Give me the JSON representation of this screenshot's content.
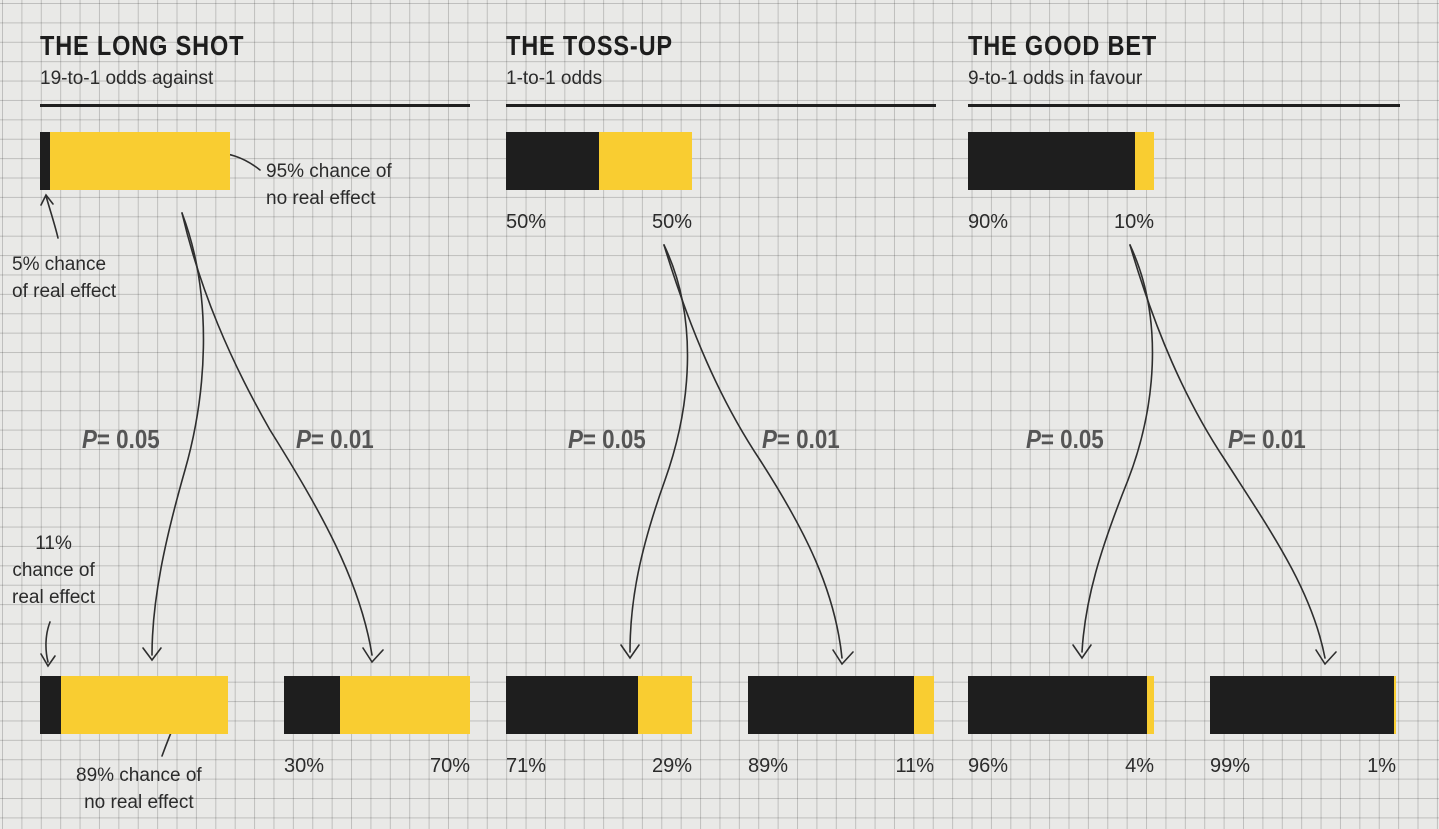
{
  "panels": [
    {
      "title": "THE LONG SHOT",
      "subtitle": "19-to-1 odds against",
      "prior": {
        "real": 5,
        "none": 95
      },
      "p05": {
        "label_p": "P",
        "label_val": "= 0.05",
        "real": 11,
        "none": 89
      },
      "p01": {
        "label_p": "P",
        "label_val": "= 0.01",
        "real": 30,
        "none": 70
      },
      "prior_labels": [
        "",
        ""
      ],
      "p05_labels": [
        "",
        ""
      ],
      "p01_labels": [
        "30%",
        "70%"
      ]
    },
    {
      "title": "THE TOSS-UP",
      "subtitle": "1-to-1 odds",
      "prior": {
        "real": 50,
        "none": 50
      },
      "p05": {
        "label_p": "P",
        "label_val": "= 0.05",
        "real": 71,
        "none": 29
      },
      "p01": {
        "label_p": "P",
        "label_val": "= 0.01",
        "real": 89,
        "none": 11
      },
      "prior_labels": [
        "50%",
        "50%"
      ],
      "p05_labels": [
        "71%",
        "29%"
      ],
      "p01_labels": [
        "89%",
        "11%"
      ]
    },
    {
      "title": "THE GOOD BET",
      "subtitle": "9-to-1 odds in favour",
      "prior": {
        "real": 90,
        "none": 10
      },
      "p05": {
        "label_p": "P",
        "label_val": "= 0.05",
        "real": 96,
        "none": 4
      },
      "p01": {
        "label_p": "P",
        "label_val": "= 0.01",
        "real": 99,
        "none": 1
      },
      "prior_labels": [
        "90%",
        "10%"
      ],
      "p05_labels": [
        "96%",
        "4%"
      ],
      "p01_labels": [
        "99%",
        "1%"
      ]
    }
  ],
  "notes": {
    "no_effect_top": [
      "95% chance of",
      "no real effect"
    ],
    "real_effect_top": [
      "5% chance",
      "of real effect"
    ],
    "real_effect_bottom": [
      "11%",
      "chance of",
      "real effect"
    ],
    "no_effect_bottom": [
      "89% chance of",
      "no real effect"
    ]
  },
  "colors": {
    "real": "#1e1e1e",
    "none": "#f9cd31",
    "grid": "#c9c9c7"
  }
}
